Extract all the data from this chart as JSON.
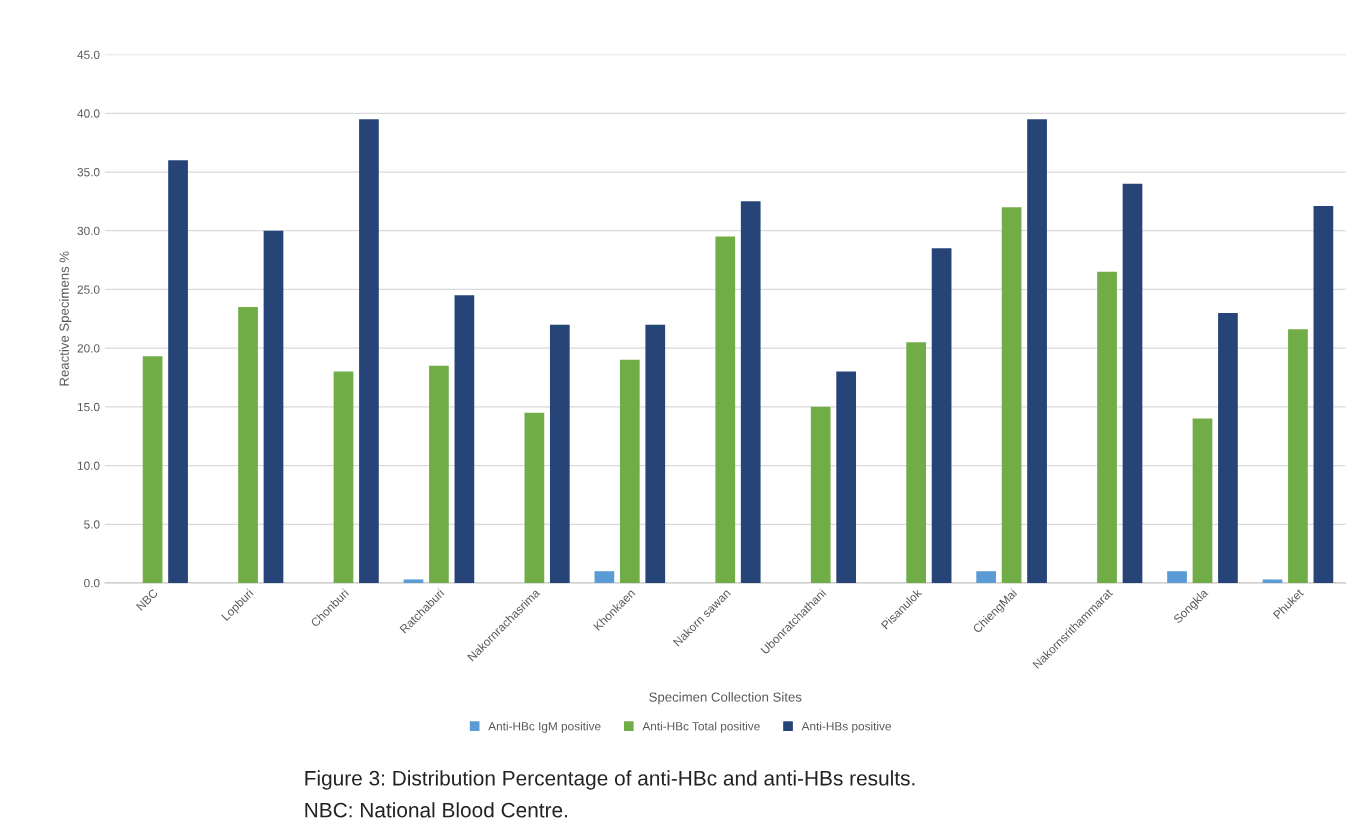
{
  "chart_data": {
    "type": "bar",
    "xlabel": "Specimen Collection Sites",
    "ylabel": "Reactive Specimens %",
    "categories": [
      "NBC",
      "Lopburi",
      "Chonburi",
      "Ratchaburi",
      "Nakornrachasrima",
      "Khonkaen",
      "Nakorn sawan",
      "Ubonratchathani",
      "Pisanulok",
      "ChiengMai",
      "Nakornsrithammarat",
      "Songkla",
      "Phuket"
    ],
    "series": [
      {
        "name": "Anti-HBc IgM positive",
        "color": "#5b9bd5",
        "values": [
          0,
          0,
          0,
          0.3,
          0,
          1.0,
          0,
          0,
          0,
          1.0,
          0,
          1.0,
          0.3
        ]
      },
      {
        "name": "Anti-HBc Total positive",
        "color": "#70ad47",
        "values": [
          19.3,
          23.5,
          18.0,
          18.5,
          14.5,
          19.0,
          29.5,
          15.0,
          20.5,
          32.0,
          26.5,
          14.0,
          21.6
        ]
      },
      {
        "name": "Anti-HBs positive",
        "color": "#264478",
        "values": [
          36.0,
          30.0,
          39.5,
          24.5,
          22.0,
          22.0,
          32.5,
          18.0,
          28.5,
          39.5,
          34.0,
          23.0,
          32.1
        ]
      }
    ],
    "ylim": [
      0,
      45
    ],
    "yticks": [
      {
        "value": 0,
        "label": "0.0"
      },
      {
        "value": 5,
        "label": "5.0"
      },
      {
        "value": 10,
        "label": "10.0"
      },
      {
        "value": 15,
        "label": "15.0"
      },
      {
        "value": 20,
        "label": "20.0"
      },
      {
        "value": 25,
        "label": "25.0"
      },
      {
        "value": 30,
        "label": "30.0"
      },
      {
        "value": 35,
        "label": "35.0"
      },
      {
        "value": 40,
        "label": "40.0"
      },
      {
        "value": 45,
        "label": "45.0"
      }
    ],
    "grid": "y",
    "legend": "bottom",
    "annotations": [
      "Figure 3: Distribution Percentage of anti-HBc and anti-HBs results.",
      "NBC: National Blood Centre."
    ]
  }
}
